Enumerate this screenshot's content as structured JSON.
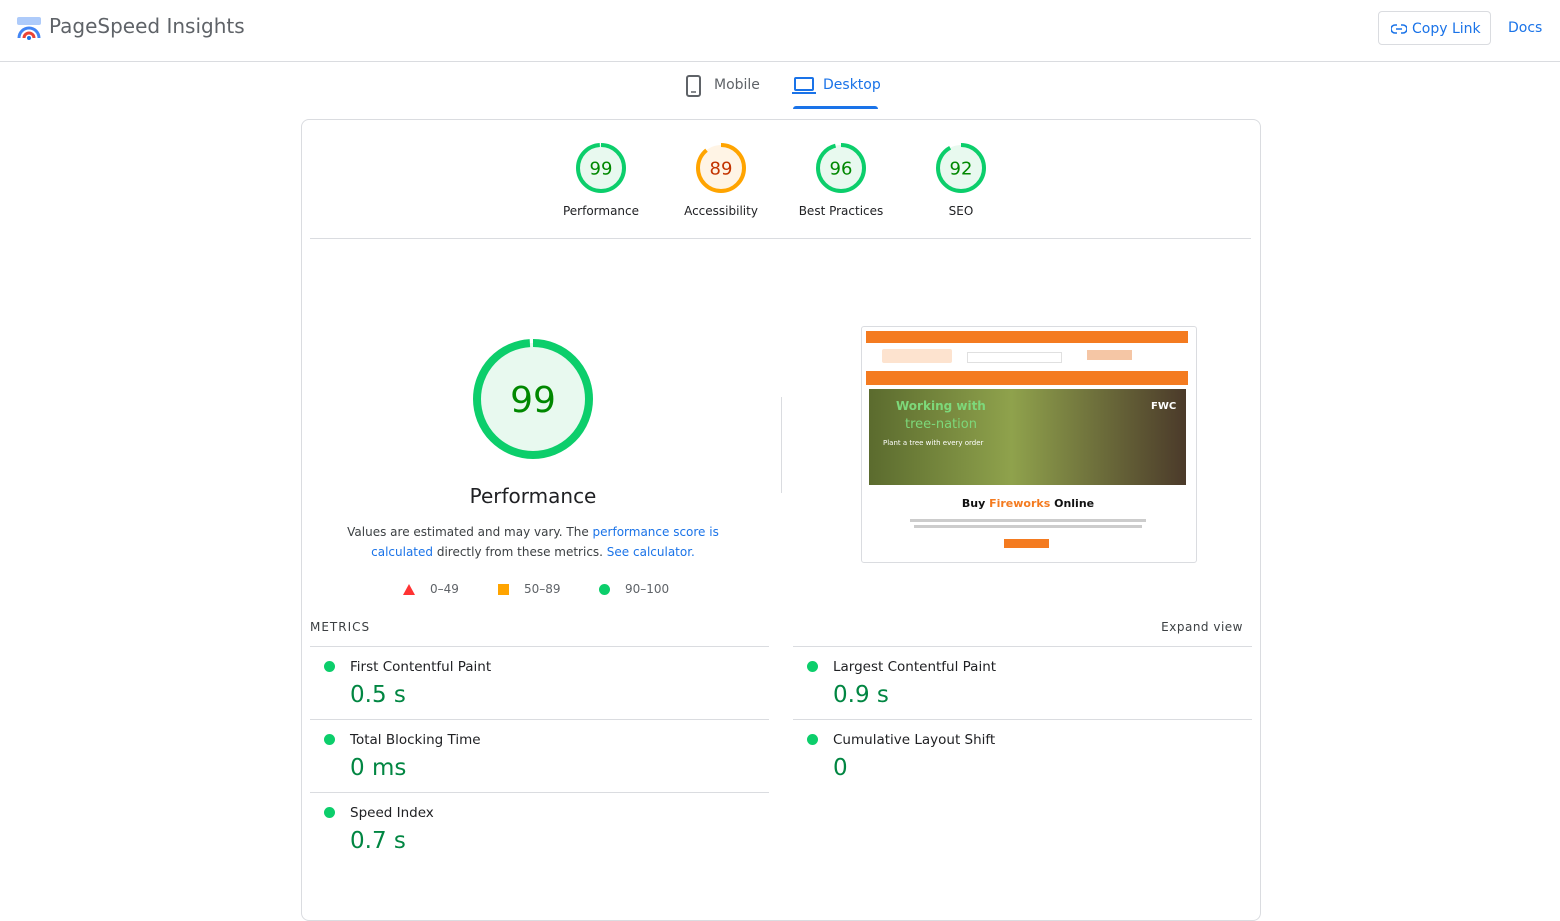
{
  "header": {
    "title": "PageSpeed Insights",
    "copy_link": "Copy Link",
    "docs": "Docs"
  },
  "tabs": [
    {
      "label": "Mobile",
      "selected": false
    },
    {
      "label": "Desktop",
      "selected": true
    }
  ],
  "scores": [
    {
      "label": "Performance",
      "value": 99,
      "color": "#0cce6b",
      "text_color": "#008800",
      "fill": "#e8f9ef"
    },
    {
      "label": "Accessibility",
      "value": 89,
      "color": "#ffa400",
      "text_color": "#c33300",
      "fill": "#fff4e5"
    },
    {
      "label": "Best Practices",
      "value": 96,
      "color": "#0cce6b",
      "text_color": "#008800",
      "fill": "#e8f9ef"
    },
    {
      "label": "SEO",
      "value": 92,
      "color": "#0cce6b",
      "text_color": "#008800",
      "fill": "#e8f9ef"
    }
  ],
  "performance": {
    "score": 99,
    "title": "Performance",
    "color": "#0cce6b",
    "text_color": "#008800",
    "fill": "#e8f9ef",
    "note": {
      "before": "Values are estimated and may vary. The ",
      "link1": "performance score is calculated",
      "middle": " directly from these metrics. ",
      "link2": "See calculator."
    },
    "legend": [
      "0–49",
      "50–89",
      "90–100"
    ]
  },
  "screenshot": {
    "hero_line1": "Working with",
    "hero_line2": "tree-nation",
    "hero_sub": "Plant a tree with every order",
    "badge": "FWC",
    "heading": {
      "before": "Buy ",
      "highlight": "Fireworks",
      "after": " Online"
    }
  },
  "metrics": {
    "heading": "METRICS",
    "expand": "Expand view",
    "items": [
      {
        "name": "First Contentful Paint",
        "value": "0.5 s"
      },
      {
        "name": "Largest Contentful Paint",
        "value": "0.9 s"
      },
      {
        "name": "Total Blocking Time",
        "value": "0 ms"
      },
      {
        "name": "Cumulative Layout Shift",
        "value": "0"
      },
      {
        "name": "Speed Index",
        "value": "0.7 s"
      }
    ]
  }
}
